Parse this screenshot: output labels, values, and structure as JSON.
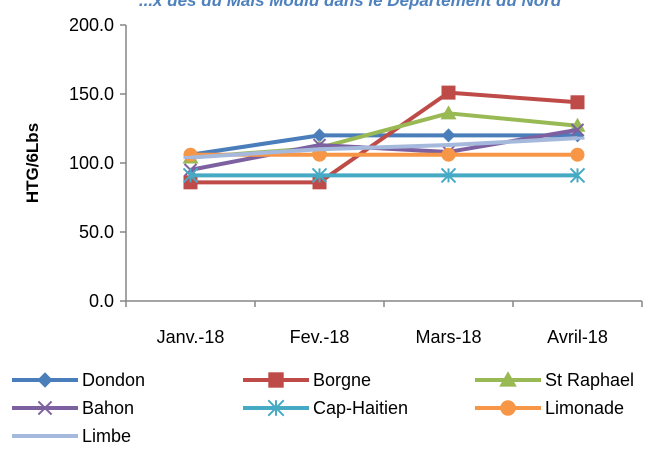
{
  "chart_data": {
    "type": "line",
    "title": "...x des du Mais Moulu dans le Departement du Nord",
    "title_color": "#4F81BD",
    "categories": [
      "Janv.-18",
      "Fev.-18",
      "Mars-18",
      "Avril-18"
    ],
    "ylabel": "HTG/6Lbs",
    "xlabel": "",
    "ylim": [
      0,
      200
    ],
    "y_ticks": [
      "0.0",
      "50.0",
      "100.0",
      "150.0",
      "200.0"
    ],
    "grid": false,
    "legend_position": "bottom",
    "series": [
      {
        "name": "Dondon",
        "values": [
          106,
          120,
          120,
          120
        ],
        "color": "#4A7EBB",
        "marker": "diamond"
      },
      {
        "name": "Borgne",
        "values": [
          86,
          86,
          151,
          144
        ],
        "color": "#BE4B48",
        "marker": "square"
      },
      {
        "name": "St Raphael",
        "values": [
          104,
          111,
          136,
          127
        ],
        "color": "#98B954",
        "marker": "triangle"
      },
      {
        "name": "Bahon",
        "values": [
          95,
          113,
          108,
          124
        ],
        "color": "#7D60A0",
        "marker": "x"
      },
      {
        "name": "Cap-Haitien",
        "values": [
          91,
          91,
          91,
          91
        ],
        "color": "#46AAC5",
        "marker": "star"
      },
      {
        "name": "Limonade",
        "values": [
          106,
          106,
          106,
          106
        ],
        "color": "#F79646",
        "marker": "circle"
      },
      {
        "name": "Limbe",
        "values": [
          104,
          110,
          113,
          118
        ],
        "color": "#A5B9DD",
        "marker": "dash"
      }
    ]
  }
}
